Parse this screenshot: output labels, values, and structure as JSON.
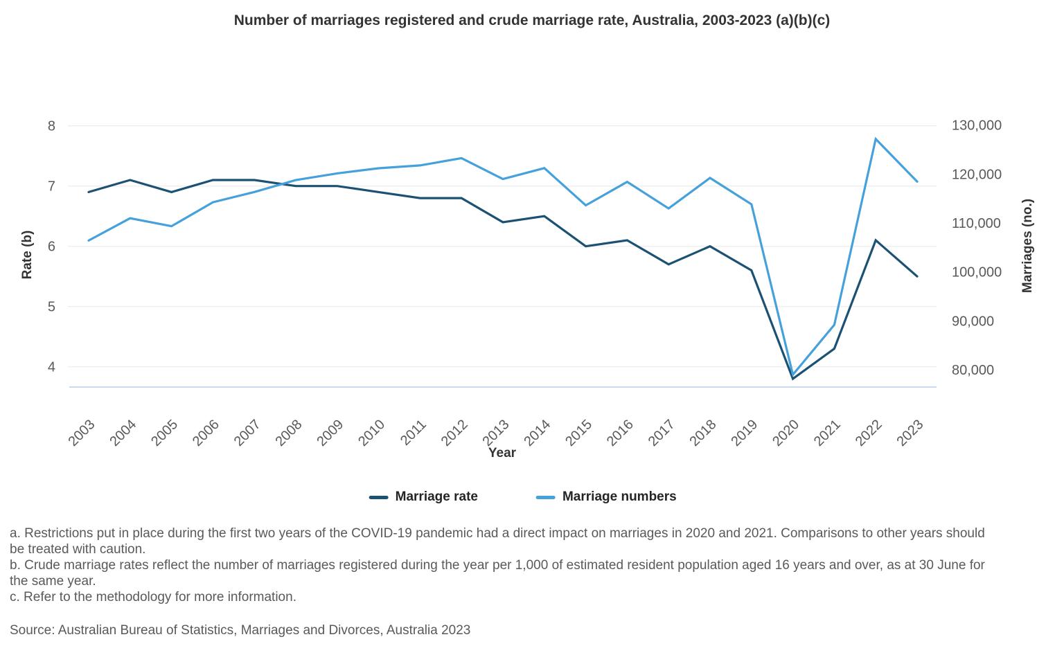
{
  "title": "Number of marriages registered and crude marriage rate, Australia, 2003-2023 (a)(b)(c)",
  "chart_data": {
    "type": "line",
    "x": [
      "2003",
      "2004",
      "2005",
      "2006",
      "2007",
      "2008",
      "2009",
      "2010",
      "2011",
      "2012",
      "2013",
      "2014",
      "2015",
      "2016",
      "2017",
      "2018",
      "2019",
      "2020",
      "2021",
      "2022",
      "2023"
    ],
    "series": [
      {
        "name": "Marriage rate",
        "axis": "left",
        "color": "#1b5172",
        "values": [
          6.9,
          7.1,
          6.9,
          7.1,
          7.1,
          7.0,
          7.0,
          6.9,
          6.8,
          6.8,
          6.4,
          6.5,
          6.0,
          6.1,
          5.7,
          6.0,
          5.6,
          3.8,
          4.3,
          6.1,
          5.5
        ]
      },
      {
        "name": "Marriage numbers",
        "axis": "right",
        "color": "#45a1db",
        "values": [
          106394,
          110958,
          109323,
          114222,
          116322,
          118756,
          120118,
          121176,
          121752,
          123244,
          118962,
          121197,
          113595,
          118401,
          112954,
          119188,
          113815,
          78989,
          89164,
          127161,
          118439
        ]
      }
    ],
    "left_axis": {
      "label": "Rate (b)",
      "ticks": [
        8,
        7,
        6,
        5,
        4
      ],
      "ylim": [
        3.7,
        8
      ]
    },
    "right_axis": {
      "label": "Marriages (no.)",
      "ticks": [
        {
          "value": 130000,
          "label": "130,000"
        },
        {
          "value": 120000,
          "label": "120,000"
        },
        {
          "value": 110000,
          "label": "110,000"
        },
        {
          "value": 100000,
          "label": "100,000"
        },
        {
          "value": 90000,
          "label": "90,000"
        },
        {
          "value": 80000,
          "label": "80,000"
        }
      ],
      "ylim": [
        76500,
        130000
      ]
    },
    "xlabel": "Year",
    "grid": "horizontal",
    "legend_position": "bottom",
    "gridline_color": "#e8e8e8",
    "baseline_color": "#bccfe6",
    "tick_color": "#595959"
  },
  "footnotes": [
    "a. Restrictions put in place during the first two years of the COVID-19 pandemic had a direct impact on marriages in 2020 and 2021. Comparisons to other years should be treated with caution.",
    "b. Crude marriage rates reflect the number of marriages registered during the year per 1,000 of estimated resident population aged 16 years and over, as at 30 June for the same year.",
    "c. Refer to the methodology for more information."
  ],
  "source": "Source: Australian Bureau of Statistics, Marriages and Divorces, Australia 2023"
}
